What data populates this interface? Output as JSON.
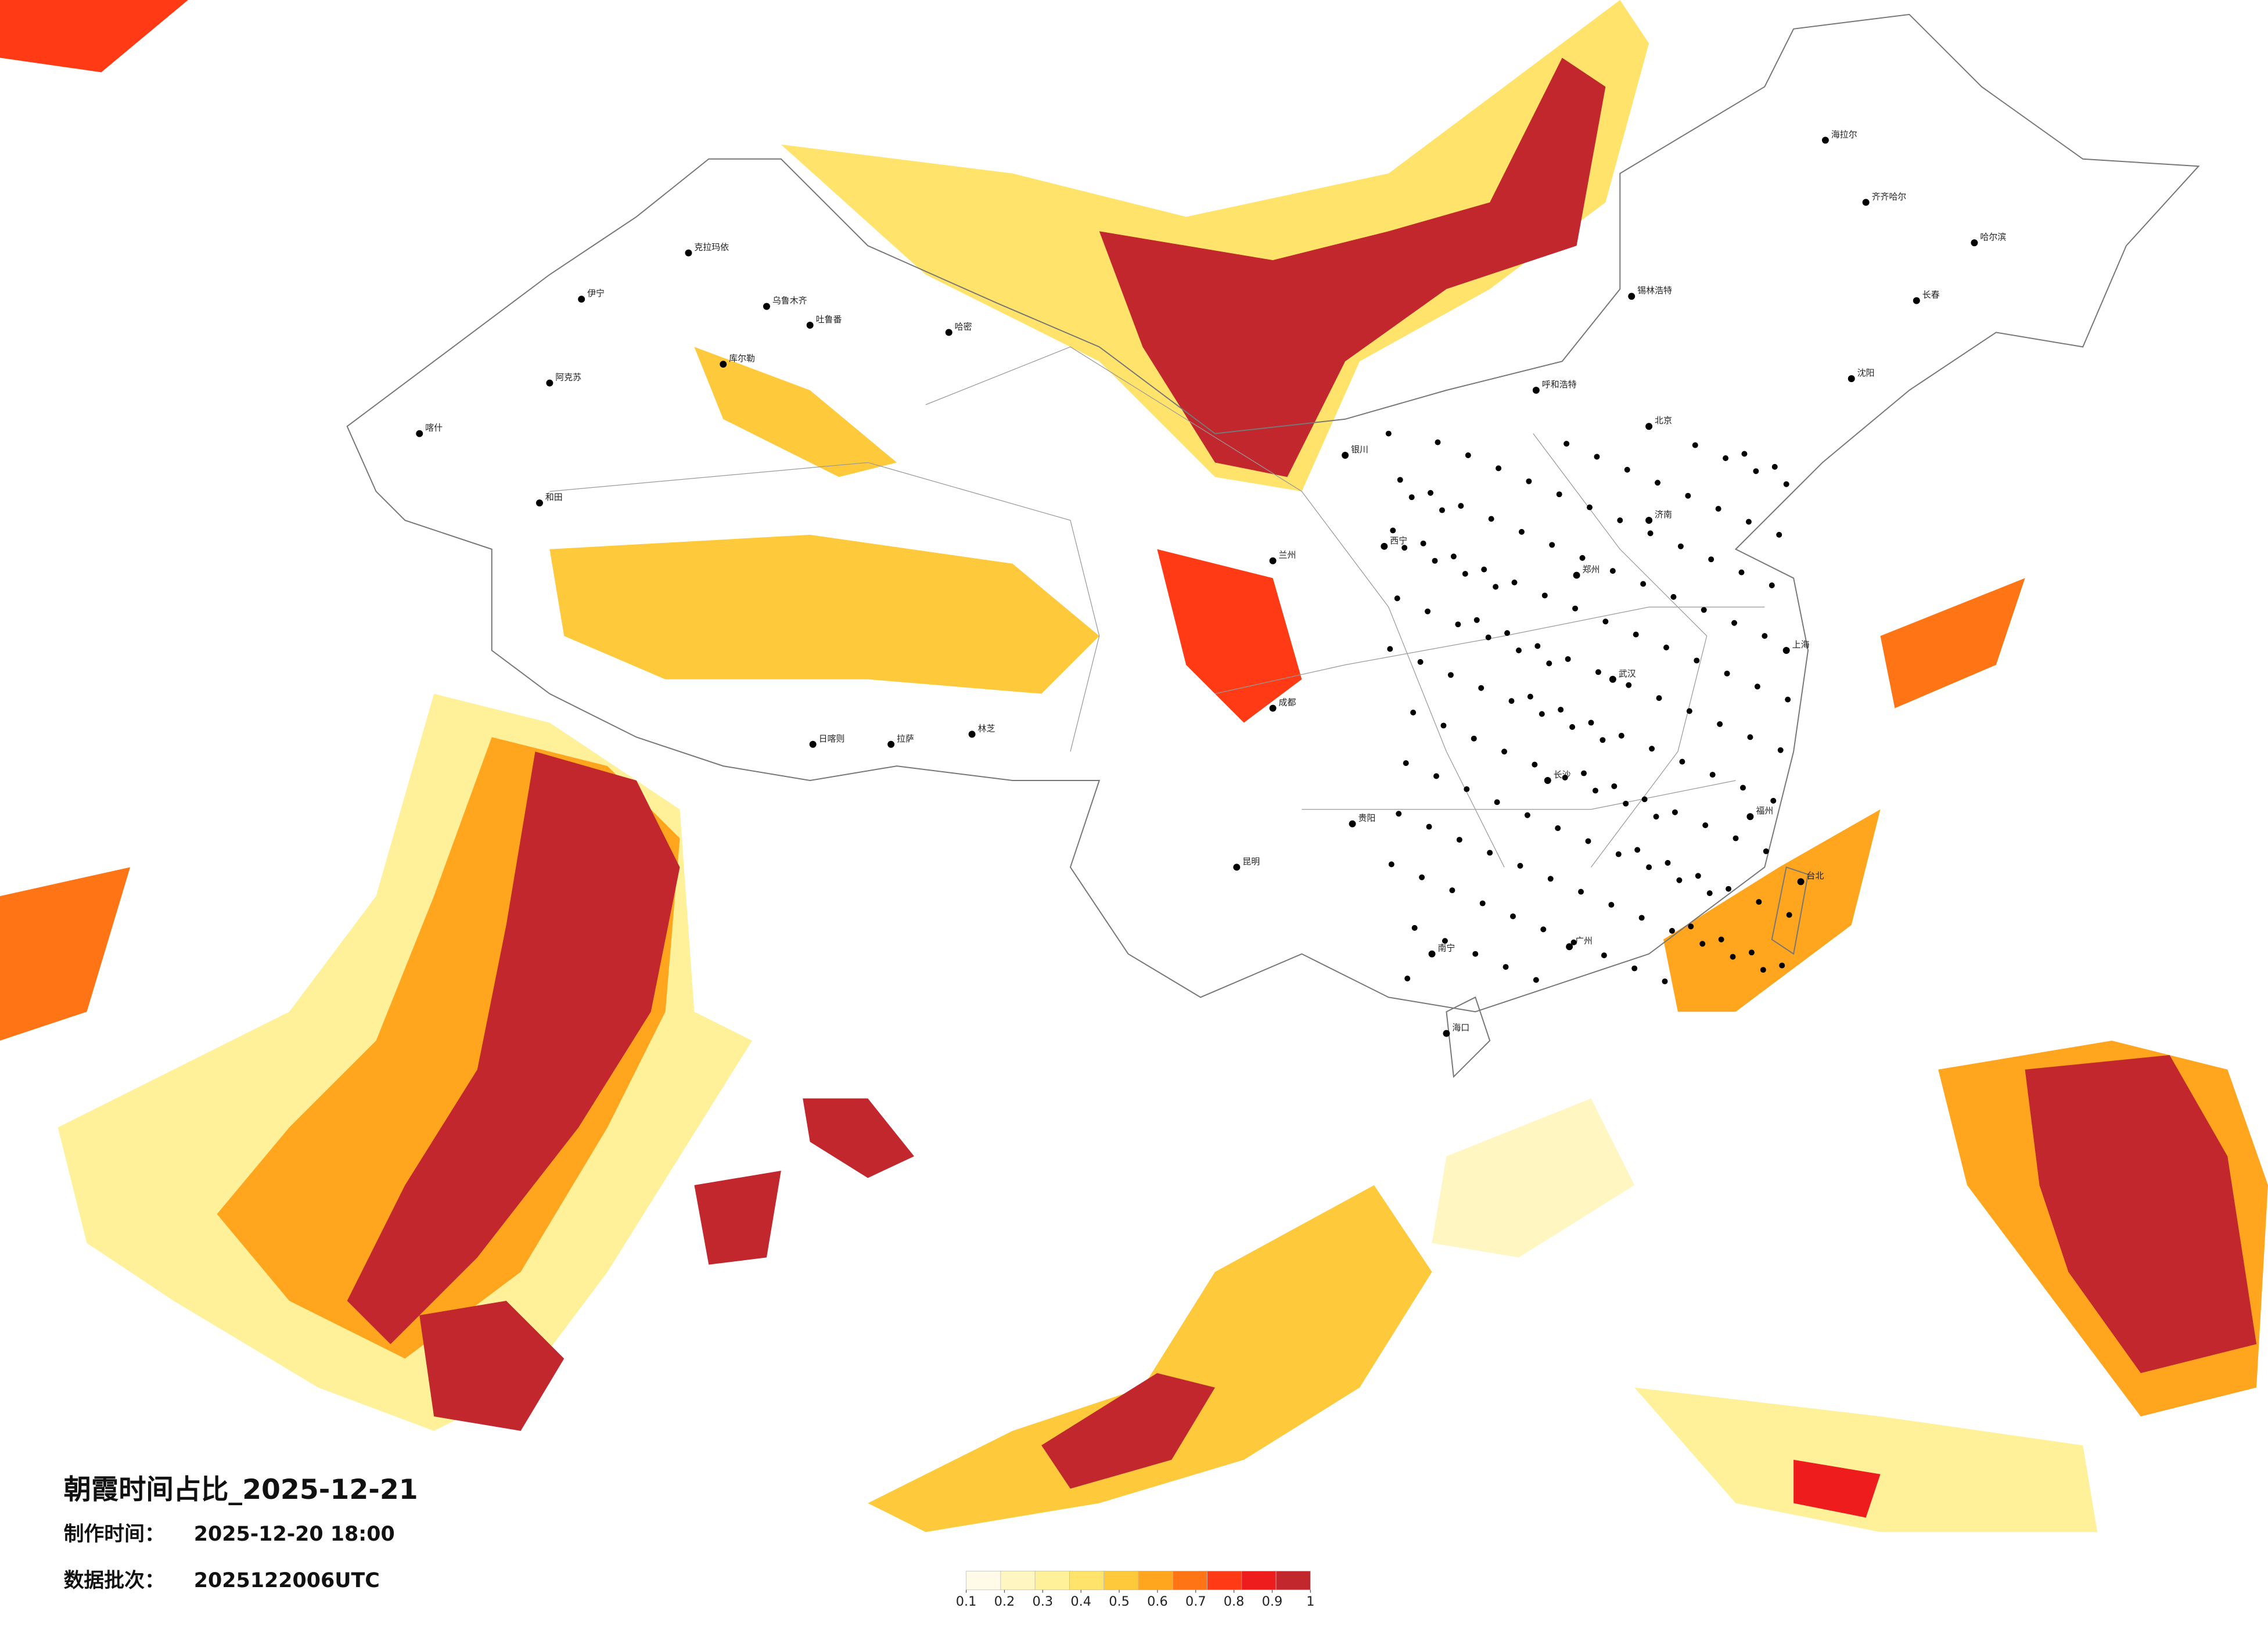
{
  "title": "朝霞时间占比_2025-12-21",
  "made_time": {
    "label": "制作时间：",
    "value": "2025-12-20 18:00"
  },
  "batch": {
    "label": "数据批次：",
    "value": "2025122006UTC"
  },
  "legend": {
    "ticks": [
      0.1,
      0.2,
      0.3,
      0.4,
      0.5,
      0.6,
      0.7,
      0.8,
      0.9,
      1
    ],
    "colors": [
      "#fffbe8",
      "#fff6c2",
      "#fff09a",
      "#ffe36a",
      "#ffc93c",
      "#ffa51e",
      "#ff7414",
      "#ff3a14",
      "#ee1c1c",
      "#c1272d"
    ]
  },
  "cities": [
    "克拉玛依",
    "乌鲁木齐",
    "吐鲁番",
    "伊宁",
    "阿克苏",
    "和田",
    "喀什",
    "哈密",
    "库尔勒",
    "日喀则",
    "拉萨",
    "林芝",
    "海拉尔",
    "齐齐哈尔",
    "哈尔滨",
    "长春",
    "沈阳",
    "锡林浩特",
    "北京",
    "呼和浩特",
    "西宁",
    "银川",
    "兰州",
    "郑州",
    "成都",
    "武汉",
    "上海",
    "长沙",
    "贵阳",
    "昆明",
    "南宁",
    "广州",
    "海口",
    "台北",
    "福州",
    "济南"
  ]
}
